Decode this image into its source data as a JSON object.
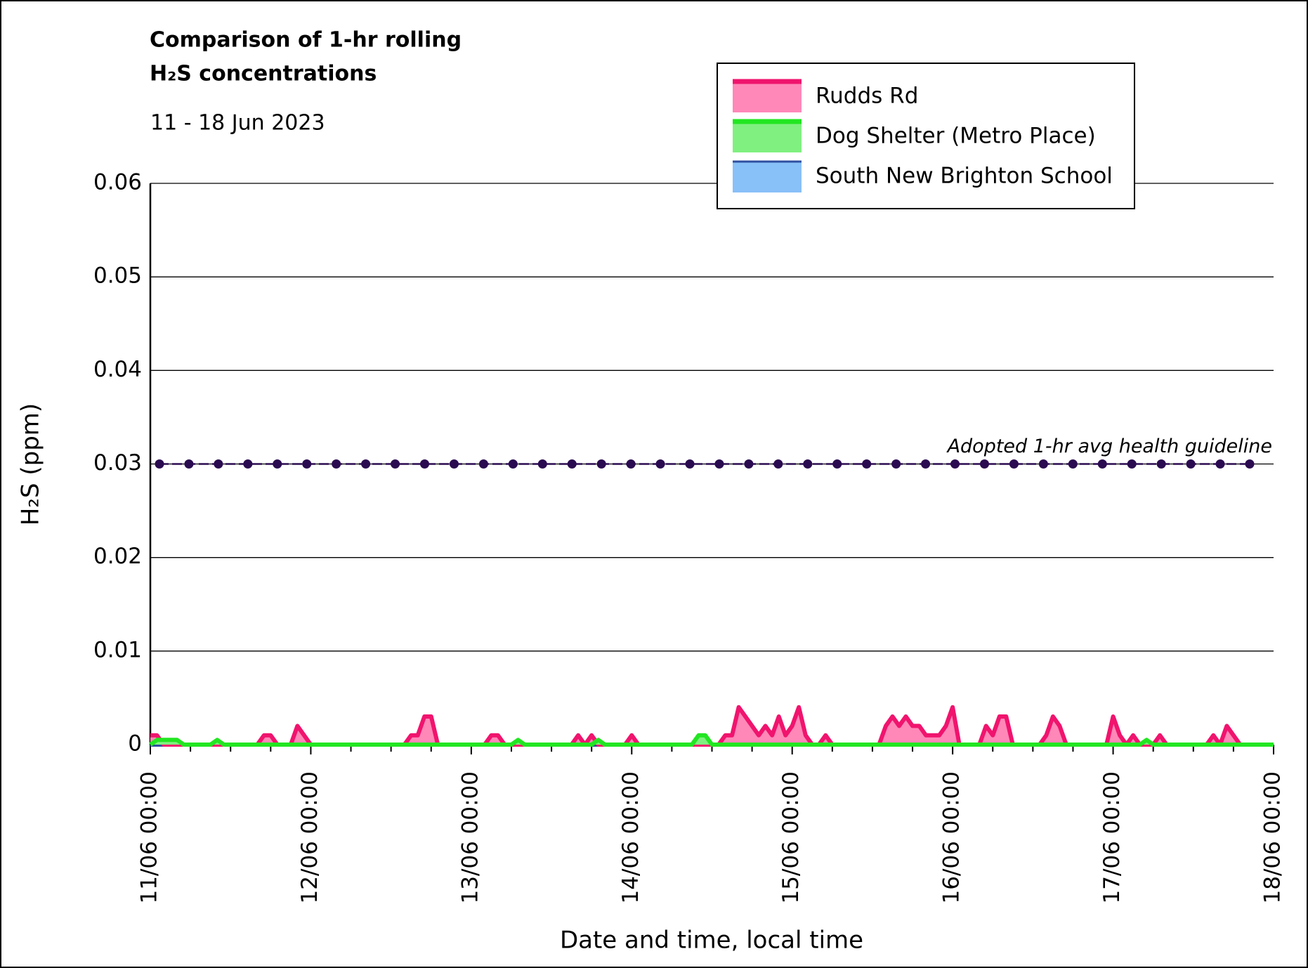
{
  "chart_data": {
    "type": "area",
    "title": [
      "Comparison of 1-hr rolling",
      "H₂S concentrations"
    ],
    "subtitle": "11 - 18 Jun 2023",
    "x_label": "Date and time, local time",
    "y_label": "H₂S (ppm)",
    "xlim": [
      "11/06 00:00",
      "18/06 00:00"
    ],
    "xticks": [
      "11/06 00:00",
      "12/06 00:00",
      "13/06 00:00",
      "14/06 00:00",
      "15/06 00:00",
      "16/06 00:00",
      "17/06 00:00",
      "18/06 00:00"
    ],
    "xminorticks": [
      "11/06 06:00",
      "11/06 12:00",
      "11/06 18:00",
      "12/06 06:00",
      "12/06 12:00",
      "12/06 18:00",
      "13/06 06:00",
      "13/06 12:00",
      "13/06 18:00",
      "14/06 06:00",
      "14/06 12:00",
      "14/06 18:00",
      "15/06 06:00",
      "15/06 12:00",
      "15/06 18:00",
      "16/06 06:00",
      "16/06 12:00",
      "16/06 18:00",
      "17/06 06:00",
      "17/06 12:00",
      "17/06 18:00"
    ],
    "ylim": [
      0,
      0.06
    ],
    "yticks": [
      0,
      0.01,
      0.02,
      0.03,
      0.04,
      0.05,
      0.06
    ],
    "grid": true,
    "legend": "upper right",
    "guideline": {
      "value": 0.03,
      "label": "Adopted 1-hr avg health guideline",
      "color": "#2a0a50"
    },
    "series": [
      {
        "name": "Rudds Rd",
        "color": "#f0146e",
        "fill": "#ff88b8",
        "x": [
          "11/06 00:00",
          "11/06 01:00",
          "11/06 02:00",
          "11/06 16:00",
          "11/06 17:00",
          "11/06 18:00",
          "11/06 19:00",
          "11/06 21:00",
          "11/06 22:00",
          "11/06 23:00",
          "12/06 00:00",
          "12/06 14:00",
          "12/06 15:00",
          "12/06 16:00",
          "12/06 17:00",
          "12/06 18:00",
          "12/06 19:00",
          "13/06 02:00",
          "13/06 03:00",
          "13/06 04:00",
          "13/06 05:00",
          "13/06 15:00",
          "13/06 16:00",
          "13/06 17:00",
          "13/06 18:00",
          "13/06 19:00",
          "13/06 23:00",
          "14/06 00:00",
          "14/06 01:00",
          "14/06 13:00",
          "14/06 14:00",
          "14/06 15:00",
          "14/06 16:00",
          "14/06 17:00",
          "14/06 18:00",
          "14/06 19:00",
          "14/06 20:00",
          "14/06 21:00",
          "14/06 22:00",
          "14/06 23:00",
          "15/06 00:00",
          "15/06 01:00",
          "15/06 02:00",
          "15/06 03:00",
          "15/06 04:00",
          "15/06 05:00",
          "15/06 06:00",
          "15/06 13:00",
          "15/06 14:00",
          "15/06 15:00",
          "15/06 16:00",
          "15/06 17:00",
          "15/06 18:00",
          "15/06 19:00",
          "15/06 20:00",
          "15/06 21:00",
          "15/06 22:00",
          "15/06 23:00",
          "16/06 00:00",
          "16/06 01:00",
          "16/06 04:00",
          "16/06 05:00",
          "16/06 06:00",
          "16/06 07:00",
          "16/06 08:00",
          "16/06 09:00",
          "16/06 13:00",
          "16/06 14:00",
          "16/06 15:00",
          "16/06 16:00",
          "16/06 17:00",
          "16/06 23:00",
          "17/06 00:00",
          "17/06 01:00",
          "17/06 02:00",
          "17/06 03:00",
          "17/06 04:00",
          "17/06 06:00",
          "17/06 07:00",
          "17/06 08:00",
          "17/06 14:00",
          "17/06 15:00",
          "17/06 16:00",
          "17/06 17:00",
          "17/06 18:00",
          "17/06 19:00",
          "18/06 00:00"
        ],
        "values": [
          0.001,
          0.001,
          0,
          0,
          0.001,
          0.001,
          0,
          0,
          0.002,
          0.001,
          0,
          0,
          0.001,
          0.001,
          0.003,
          0.003,
          0,
          0,
          0.001,
          0.001,
          0,
          0,
          0.001,
          0,
          0.001,
          0,
          0,
          0.001,
          0,
          0,
          0.001,
          0.001,
          0.004,
          0.003,
          0.002,
          0.001,
          0.002,
          0.001,
          0.003,
          0.001,
          0.002,
          0.004,
          0.001,
          0,
          0,
          0.001,
          0,
          0,
          0.002,
          0.003,
          0.002,
          0.003,
          0.002,
          0.002,
          0.001,
          0.001,
          0.001,
          0.002,
          0.004,
          0,
          0,
          0.002,
          0.001,
          0.003,
          0.003,
          0,
          0,
          0.001,
          0.003,
          0.002,
          0,
          0,
          0.003,
          0.001,
          0,
          0.001,
          0,
          0,
          0.001,
          0,
          0,
          0.001,
          0,
          0.002,
          0.001,
          0,
          0
        ]
      },
      {
        "name": "Dog Shelter (Metro Place)",
        "color": "#22e622",
        "fill": "#80f080",
        "x": [
          "11/06 00:00",
          "11/06 01:00",
          "11/06 04:00",
          "11/06 05:00",
          "11/06 09:00",
          "11/06 10:00",
          "11/06 11:00",
          "13/06 06:00",
          "13/06 07:00",
          "13/06 08:00",
          "13/06 18:00",
          "13/06 19:00",
          "13/06 20:00",
          "14/06 09:00",
          "14/06 10:00",
          "14/06 11:00",
          "14/06 12:00",
          "17/06 04:00",
          "17/06 05:00",
          "17/06 06:00",
          "18/06 00:00"
        ],
        "values": [
          0,
          0.0005,
          0.0005,
          0,
          0,
          0.0005,
          0,
          0,
          0.0005,
          0,
          0,
          0.0005,
          0,
          0,
          0.001,
          0.001,
          0,
          0,
          0.0005,
          0,
          0
        ]
      },
      {
        "name": "South New Brighton School",
        "color": "#2f4f9f",
        "fill": "#88c0f8",
        "x": [
          "11/06 00:00",
          "18/06 00:00"
        ],
        "values": [
          0,
          0
        ]
      }
    ]
  }
}
